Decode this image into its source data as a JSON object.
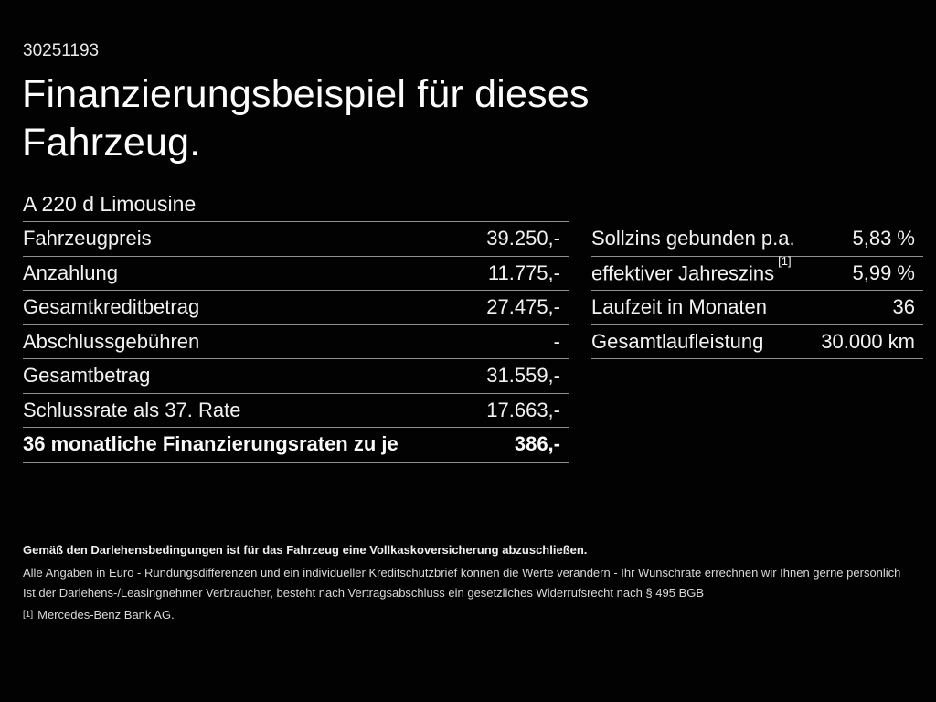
{
  "page": {
    "background": "#020202",
    "text_color": "#f5f5f5",
    "divider_color": "#8f8f8f"
  },
  "header": {
    "vehicle_id": "30251193",
    "title_line1": "Finanzierungsbeispiel für dieses",
    "title_line2": "Fahrzeug.",
    "model": "A 220 d Limousine"
  },
  "finance_table": {
    "rows": [
      {
        "label": "Fahrzeugpreis",
        "value": "39.250,-"
      },
      {
        "label": "Anzahlung",
        "value": "11.775,-"
      },
      {
        "label": "Gesamtkreditbetrag",
        "value": "27.475,-"
      },
      {
        "label": "Abschlussgebühren",
        "value": "-"
      },
      {
        "label": "Gesamtbetrag",
        "value": "31.559,-"
      },
      {
        "label": "Schlussrate als 37. Rate",
        "value": "17.663,-"
      },
      {
        "label": "36 monatliche Finanzierungsraten zu je",
        "value": "386,-",
        "bold": true
      }
    ]
  },
  "conditions_table": {
    "rows": [
      {
        "label": "Sollzins gebunden p.a.",
        "value": "5,83 %"
      },
      {
        "label": "effektiver Jahreszins",
        "footnote_marker": "[1]",
        "value": "5,99 %"
      },
      {
        "label": "Laufzeit in Monaten",
        "value": "36"
      },
      {
        "label": "Gesamtlaufleistung",
        "value": "30.000 km"
      }
    ]
  },
  "fine_print": {
    "insurance_note": "Gemäß den Darlehensbedingungen ist für das Fahrzeug eine Vollkaskoversicherung abzuschließen.",
    "disclaimer_line1": "Alle Angaben in Euro - Rundungsdifferenzen und ein individueller Kreditschutzbrief können die Werte verändern - Ihr Wunschrate errechnen wir Ihnen gerne persönlich",
    "disclaimer_line2": "Ist der Darlehens-/Leasingnehmer Verbraucher, besteht nach Vertragsabschluss ein gesetzliches Widerrufsrecht nach § 495 BGB",
    "footnote_marker": "[1]",
    "footnote_text": "Mercedes-Benz Bank AG."
  }
}
